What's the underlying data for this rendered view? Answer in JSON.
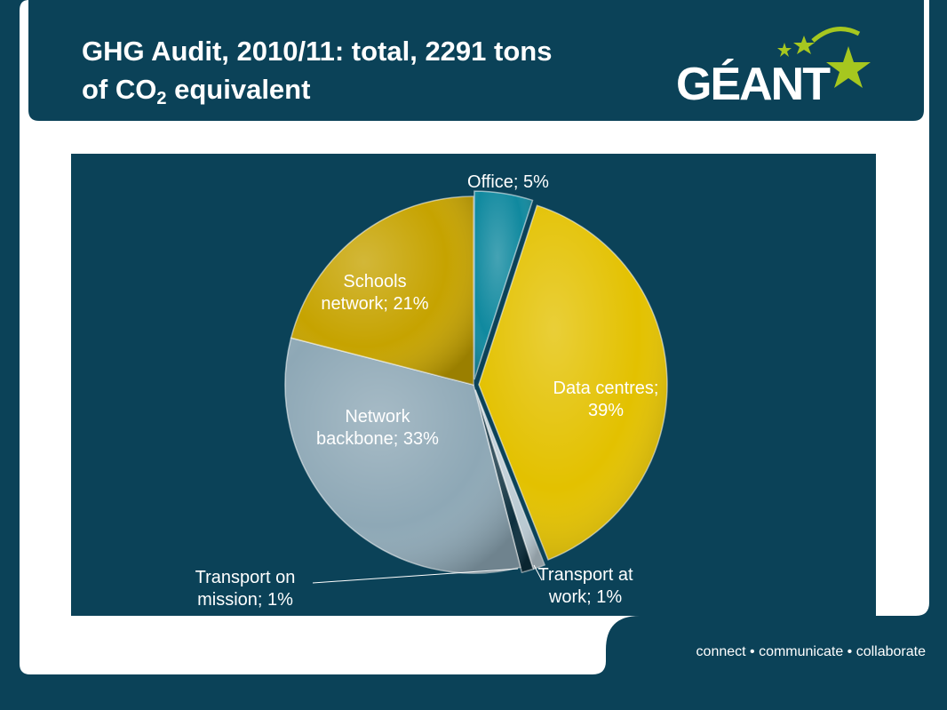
{
  "slide": {
    "title_line1": "GHG Audit, 2010/11: total, 2291 tons",
    "title_line2_prefix": "of CO",
    "title_line2_sub": "2",
    "title_line2_suffix": " equivalent",
    "tagline": "connect • communicate • collaborate"
  },
  "logo": {
    "text": "GÉANT",
    "accent_color": "#a6c71f"
  },
  "colors": {
    "background": "#0b4258",
    "panel": "#ffffff",
    "plot_background": "#0b4258"
  },
  "chart_data": {
    "type": "pie",
    "start_angle_deg": 0,
    "direction": "clockwise",
    "slices": [
      {
        "label": "Office",
        "value": 5,
        "display": "Office; 5%",
        "color": "#10899f"
      },
      {
        "label": "Data centres",
        "value": 39,
        "display": "Data centres;\n39%",
        "color": "#e3c100"
      },
      {
        "label": "Transport at work",
        "value": 1,
        "display": "Transport at\nwork; 1%",
        "color": "#b9c9d2"
      },
      {
        "label": "Transport on mission",
        "value": 1,
        "display": "Transport on\nmission; 1%",
        "color": "#0d2f3e"
      },
      {
        "label": "Network backbone",
        "value": 33,
        "display": "Network\nbackbone; 33%",
        "color": "#8ea8b6"
      },
      {
        "label": "Schools network",
        "value": 21,
        "display": "Schools\nnetwork; 21%",
        "color": "#c6a300"
      }
    ]
  }
}
